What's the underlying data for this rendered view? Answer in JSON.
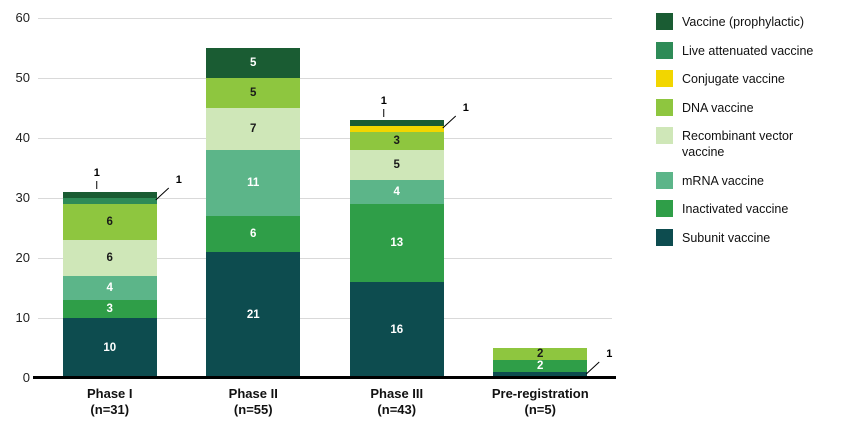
{
  "chart_data": {
    "type": "bar",
    "stacked": true,
    "title": "",
    "grid": true,
    "legend_position": "right",
    "ylim": [
      0,
      60
    ],
    "yticks": [
      0,
      10,
      20,
      30,
      40,
      50,
      60
    ],
    "categories": [
      {
        "label": "Phase I",
        "sublabel": "(n=31)"
      },
      {
        "label": "Phase II",
        "sublabel": "(n=55)"
      },
      {
        "label": "Phase III",
        "sublabel": "(n=43)"
      },
      {
        "label": "Pre-registration",
        "sublabel": "(n=5)"
      }
    ],
    "series": [
      {
        "name": "Subunit vaccine",
        "color": "#0d4c4f",
        "label_color": "#ffffff",
        "values": [
          10,
          21,
          16,
          1
        ]
      },
      {
        "name": "Inactivated vaccine",
        "color": "#2f9e48",
        "label_color": "#ffffff",
        "values": [
          3,
          6,
          13,
          2
        ]
      },
      {
        "name": "mRNA vaccine",
        "color": "#5cb589",
        "label_color": "#ffffff",
        "values": [
          4,
          11,
          4,
          0
        ]
      },
      {
        "name": "Recombinant vector vaccine",
        "color": "#cfe7b8",
        "label_color": "#1a1a1a",
        "values": [
          6,
          7,
          5,
          0
        ]
      },
      {
        "name": "DNA vaccine",
        "color": "#8ec63f",
        "label_color": "#1a1a1a",
        "values": [
          6,
          5,
          3,
          2
        ]
      },
      {
        "name": "Conjugate vaccine",
        "color": "#f2d600",
        "label_color": "#1a1a1a",
        "values": [
          0,
          0,
          1,
          0
        ]
      },
      {
        "name": "Live attenuated vaccine",
        "color": "#2e8b57",
        "label_color": "#ffffff",
        "values": [
          1,
          0,
          0,
          0
        ]
      },
      {
        "name": "Vaccine (prophylactic)",
        "color": "#1a5c33",
        "label_color": "#ffffff",
        "values": [
          1,
          5,
          1,
          0
        ]
      }
    ],
    "callouts": [
      {
        "category": 0,
        "series": "Vaccine (prophylactic)",
        "label": "1",
        "type": "up"
      },
      {
        "category": 0,
        "series": "Live attenuated vaccine",
        "label": "1",
        "type": "diag"
      },
      {
        "category": 2,
        "series": "Vaccine (prophylactic)",
        "label": "1",
        "type": "up"
      },
      {
        "category": 2,
        "series": "Conjugate vaccine",
        "label": "1",
        "type": "diag"
      },
      {
        "category": 3,
        "series": "Subunit vaccine",
        "label": "1",
        "type": "diag"
      }
    ],
    "min_inline_label_value": 2
  }
}
